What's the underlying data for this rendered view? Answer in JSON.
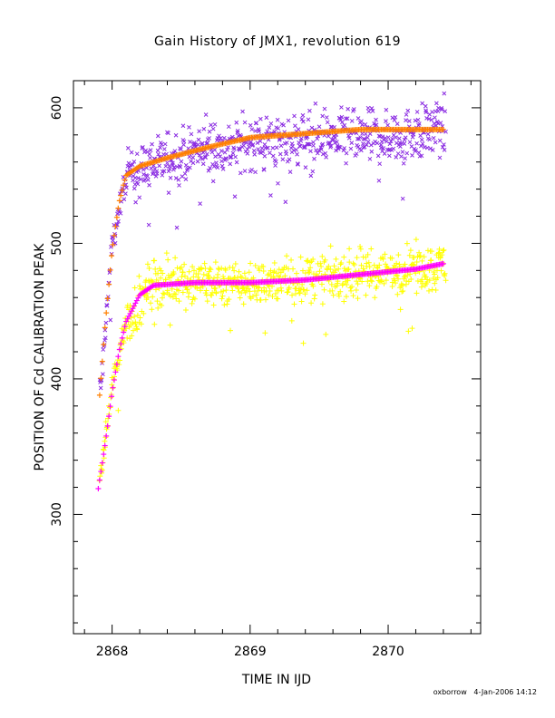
{
  "footer": {
    "author": "oxborrow",
    "timestamp": "4-Jan-2006 14:12"
  },
  "chart_data": {
    "type": "scatter",
    "title": "Gain History of JMX1, revolution 619",
    "xlabel": "TIME IN IJD",
    "ylabel": "POSITION OF Cd CALIBRATION PEAK",
    "xlim": [
      2867.72,
      2870.67
    ],
    "ylim": [
      212,
      620
    ],
    "xticks": [
      2868,
      2869,
      2870
    ],
    "xtick_labels": [
      "2868",
      "2869",
      "2870"
    ],
    "yticks": [
      300,
      400,
      500,
      600
    ],
    "ytick_labels": [
      "300",
      "400",
      "500",
      "600"
    ],
    "grid": false,
    "series": [
      {
        "marker": "x",
        "color": "#8a2be2",
        "trend_points": [
          [
            2867.92,
            395
          ],
          [
            2868.0,
            500
          ],
          [
            2868.1,
            548
          ],
          [
            2868.3,
            560
          ],
          [
            2868.6,
            568
          ],
          [
            2869.0,
            574
          ],
          [
            2869.5,
            578
          ],
          [
            2870.0,
            578
          ],
          [
            2870.4,
            585
          ]
        ],
        "scatter": 14
      },
      {
        "marker": "+",
        "color": "#ffff00",
        "trend_points": [
          [
            2867.92,
            330
          ],
          [
            2868.0,
            395
          ],
          [
            2868.1,
            440
          ],
          [
            2868.3,
            472
          ],
          [
            2868.6,
            472
          ],
          [
            2869.0,
            470
          ],
          [
            2869.5,
            474
          ],
          [
            2870.0,
            479
          ],
          [
            2870.4,
            484
          ]
        ],
        "scatter": 12
      },
      {
        "marker": "line",
        "color": "#ff8000",
        "fit_points": [
          [
            2867.91,
            388
          ],
          [
            2867.95,
            440
          ],
          [
            2868.0,
            495
          ],
          [
            2868.05,
            530
          ],
          [
            2868.1,
            550
          ],
          [
            2868.2,
            557
          ],
          [
            2868.4,
            563
          ],
          [
            2868.7,
            571
          ],
          [
            2869.0,
            578
          ],
          [
            2869.4,
            581
          ],
          [
            2869.8,
            584
          ],
          [
            2870.2,
            584
          ],
          [
            2870.4,
            584
          ]
        ]
      },
      {
        "marker": "line",
        "color": "#ff00ff",
        "fit_points": [
          [
            2867.9,
            319
          ],
          [
            2867.95,
            352
          ],
          [
            2868.0,
            390
          ],
          [
            2868.05,
            420
          ],
          [
            2868.1,
            442
          ],
          [
            2868.2,
            462
          ],
          [
            2868.3,
            469
          ],
          [
            2868.6,
            471
          ],
          [
            2869.0,
            471
          ],
          [
            2869.4,
            473
          ],
          [
            2869.8,
            477
          ],
          [
            2870.2,
            481
          ],
          [
            2870.4,
            485
          ]
        ]
      }
    ]
  }
}
